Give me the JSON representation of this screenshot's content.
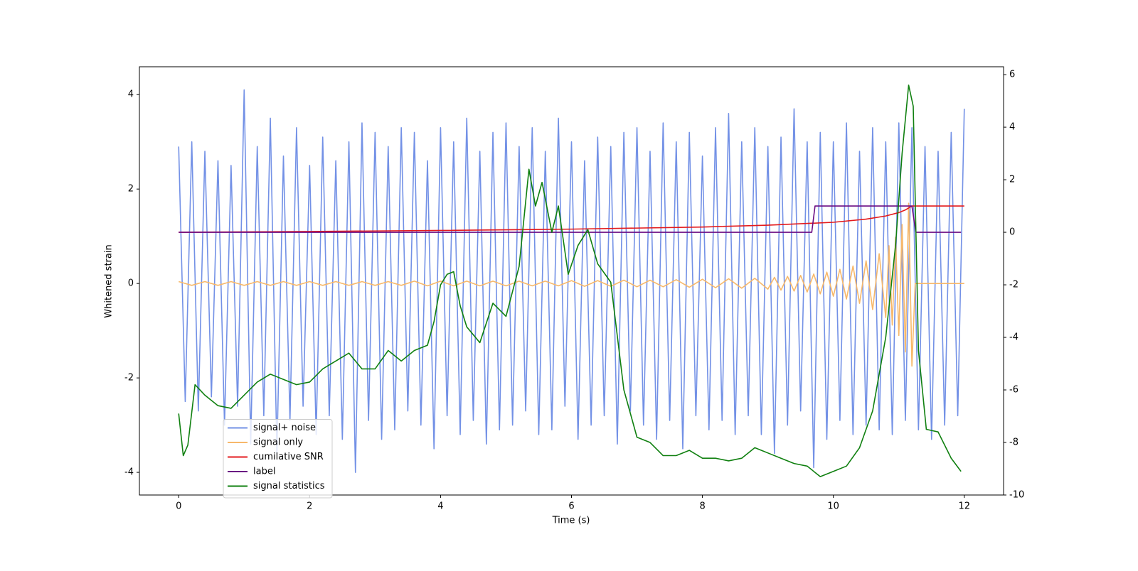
{
  "chart_data": {
    "type": "line",
    "xlabel": "Time (s)",
    "ylabel": "Whitened strain",
    "xlim": [
      -0.6,
      12.6
    ],
    "xticks": [
      0,
      2,
      4,
      6,
      8,
      10,
      12
    ],
    "ylim": [
      -4.48,
      4.59
    ],
    "yticks": [
      -4,
      -2,
      0,
      2,
      4
    ],
    "y2lim": [
      -10.0,
      6.3
    ],
    "y2ticks": [
      -10,
      -8,
      -6,
      -4,
      -2,
      0,
      2,
      4,
      6
    ],
    "legend": "lower left",
    "series": [
      {
        "name": "signal+ noise",
        "color": "#7391e6",
        "axis": "y",
        "x": [
          0,
          0.1,
          0.2,
          0.3,
          0.4,
          0.5,
          0.6,
          0.7,
          0.8,
          0.9,
          1,
          1.1,
          1.2,
          1.3,
          1.4,
          1.5,
          1.6,
          1.7,
          1.8,
          1.9,
          2,
          2.1,
          2.2,
          2.3,
          2.4,
          2.5,
          2.6,
          2.7,
          2.8,
          2.9,
          3,
          3.1,
          3.2,
          3.3,
          3.4,
          3.5,
          3.6,
          3.7,
          3.8,
          3.9,
          4,
          4.1,
          4.2,
          4.3,
          4.4,
          4.5,
          4.6,
          4.7,
          4.8,
          4.9,
          5,
          5.1,
          5.2,
          5.3,
          5.4,
          5.5,
          5.6,
          5.7,
          5.8,
          5.9,
          6,
          6.1,
          6.2,
          6.3,
          6.4,
          6.5,
          6.6,
          6.7,
          6.8,
          6.9,
          7,
          7.1,
          7.2,
          7.3,
          7.4,
          7.5,
          7.6,
          7.7,
          7.8,
          7.9,
          8,
          8.1,
          8.2,
          8.3,
          8.4,
          8.5,
          8.6,
          8.7,
          8.8,
          8.9,
          9,
          9.1,
          9.2,
          9.3,
          9.4,
          9.5,
          9.6,
          9.7,
          9.8,
          9.9,
          10,
          10.1,
          10.2,
          10.3,
          10.4,
          10.5,
          10.6,
          10.7,
          10.8,
          10.9,
          11,
          11.1,
          11.2,
          11.3,
          11.4,
          11.5,
          11.6,
          11.7,
          11.8,
          11.9,
          12
        ],
        "values": [
          2.9,
          -2.5,
          3.0,
          -2.7,
          2.8,
          -2.4,
          2.6,
          -3.0,
          2.5,
          -2.6,
          4.1,
          -3.4,
          2.9,
          -2.8,
          3.5,
          -3.6,
          2.7,
          -2.9,
          3.3,
          -2.6,
          2.5,
          -3.2,
          3.1,
          -2.8,
          2.6,
          -3.3,
          3.0,
          -4.0,
          3.4,
          -2.9,
          3.2,
          -3.3,
          2.9,
          -3.1,
          3.3,
          -2.7,
          3.2,
          -3.0,
          2.6,
          -3.5,
          3.3,
          -2.8,
          3.0,
          -3.2,
          3.5,
          -2.9,
          2.8,
          -3.4,
          3.2,
          -3.1,
          3.4,
          -3.0,
          2.9,
          -2.7,
          3.3,
          -3.2,
          2.8,
          -3.1,
          3.5,
          -2.6,
          3.0,
          -3.3,
          2.6,
          -3.0,
          3.1,
          -2.8,
          2.9,
          -3.4,
          3.2,
          -2.7,
          3.3,
          -3.0,
          2.8,
          -3.3,
          3.4,
          -2.9,
          3.0,
          -3.5,
          3.2,
          -2.8,
          2.7,
          -3.1,
          3.3,
          -2.9,
          3.6,
          -3.2,
          3.0,
          -2.8,
          3.3,
          -3.2,
          2.9,
          -3.6,
          3.1,
          -3.0,
          3.7,
          -2.7,
          3.0,
          -3.9,
          3.2,
          -3.3,
          3.0,
          -2.9,
          3.4,
          -3.2,
          2.8,
          -3.0,
          3.3,
          -3.1,
          3.0,
          -3.2,
          3.4,
          -2.9,
          3.3,
          -3.1,
          2.9,
          -3.3,
          2.8,
          -3.0,
          3.2,
          -2.8,
          3.7
        ]
      },
      {
        "name": "signal only",
        "color": "#f7b86a",
        "axis": "y",
        "x": [
          0,
          0.2,
          0.4,
          0.6,
          0.8,
          1,
          1.2,
          1.4,
          1.6,
          1.8,
          2,
          2.2,
          2.4,
          2.6,
          2.8,
          3,
          3.2,
          3.4,
          3.6,
          3.8,
          4,
          4.2,
          4.4,
          4.6,
          4.8,
          5,
          5.2,
          5.4,
          5.6,
          5.8,
          6,
          6.2,
          6.4,
          6.6,
          6.8,
          7,
          7.2,
          7.4,
          7.6,
          7.8,
          8,
          8.2,
          8.4,
          8.6,
          8.8,
          9,
          9.1,
          9.2,
          9.3,
          9.4,
          9.5,
          9.6,
          9.7,
          9.8,
          9.9,
          10,
          10.1,
          10.2,
          10.3,
          10.4,
          10.5,
          10.6,
          10.7,
          10.8,
          10.85,
          10.9,
          10.95,
          11,
          11.05,
          11.1,
          11.15,
          11.2,
          11.25,
          11.3,
          12
        ],
        "values": [
          0.04,
          -0.04,
          0.04,
          -0.04,
          0.04,
          -0.04,
          0.04,
          -0.04,
          0.04,
          -0.04,
          0.04,
          -0.04,
          0.04,
          -0.04,
          0.04,
          -0.04,
          0.04,
          -0.04,
          0.05,
          -0.05,
          0.05,
          -0.05,
          0.05,
          -0.05,
          0.05,
          -0.05,
          0.05,
          -0.05,
          0.05,
          -0.05,
          0.06,
          -0.06,
          0.06,
          -0.06,
          0.07,
          -0.07,
          0.07,
          -0.07,
          0.08,
          -0.08,
          0.09,
          -0.09,
          0.1,
          -0.1,
          0.11,
          -0.12,
          0.13,
          -0.14,
          0.15,
          -0.16,
          0.17,
          -0.18,
          0.2,
          -0.22,
          0.24,
          -0.27,
          0.3,
          -0.33,
          0.37,
          -0.42,
          0.48,
          -0.55,
          0.63,
          -0.72,
          0.8,
          -0.88,
          0.98,
          -1.1,
          1.25,
          -1.45,
          1.7,
          -1.75,
          0,
          0,
          0
        ]
      },
      {
        "name": "cumilative SNR",
        "color": "#e31a1c",
        "axis": "y2",
        "x": [
          0,
          2,
          4,
          6,
          8,
          9,
          10,
          10.5,
          10.8,
          11,
          11.1,
          11.2,
          11.3,
          12
        ],
        "values": [
          0.0,
          0.03,
          0.07,
          0.12,
          0.2,
          0.27,
          0.38,
          0.5,
          0.62,
          0.75,
          0.85,
          1.0,
          1.0,
          1.0
        ]
      },
      {
        "name": "label",
        "color": "#6a0d83",
        "axis": "y2",
        "x": [
          0,
          9.67,
          9.72,
          11.2,
          11.26,
          11.95
        ],
        "values": [
          0,
          0,
          1,
          1,
          0,
          0
        ]
      },
      {
        "name": "signal statistics",
        "color": "#108010",
        "axis": "y2",
        "x": [
          0,
          0.07,
          0.14,
          0.25,
          0.4,
          0.6,
          0.8,
          1,
          1.2,
          1.4,
          1.6,
          1.8,
          2,
          2.2,
          2.4,
          2.6,
          2.8,
          3,
          3.2,
          3.4,
          3.6,
          3.8,
          3.9,
          4,
          4.1,
          4.2,
          4.3,
          4.4,
          4.6,
          4.8,
          5,
          5.2,
          5.35,
          5.45,
          5.55,
          5.7,
          5.8,
          5.95,
          6.1,
          6.25,
          6.4,
          6.6,
          6.8,
          7,
          7.2,
          7.4,
          7.6,
          7.8,
          8,
          8.2,
          8.4,
          8.6,
          8.8,
          9,
          9.2,
          9.4,
          9.6,
          9.8,
          10,
          10.2,
          10.4,
          10.6,
          10.8,
          10.95,
          11.05,
          11.15,
          11.22,
          11.3,
          11.42,
          11.6,
          11.8,
          11.95
        ],
        "values": [
          -6.9,
          -8.5,
          -8.1,
          -5.8,
          -6.2,
          -6.6,
          -6.7,
          -6.2,
          -5.7,
          -5.4,
          -5.6,
          -5.8,
          -5.7,
          -5.2,
          -4.9,
          -4.6,
          -5.2,
          -5.2,
          -4.5,
          -4.9,
          -4.5,
          -4.3,
          -3.4,
          -2.0,
          -1.6,
          -1.5,
          -2.8,
          -3.6,
          -4.2,
          -2.7,
          -3.2,
          -1.3,
          2.4,
          1.0,
          1.9,
          0.0,
          1.0,
          -1.6,
          -0.5,
          0.1,
          -1.2,
          -1.9,
          -6.0,
          -7.8,
          -8.0,
          -8.5,
          -8.5,
          -8.3,
          -8.6,
          -8.6,
          -8.7,
          -8.6,
          -8.2,
          -8.4,
          -8.6,
          -8.8,
          -8.9,
          -9.3,
          -9.1,
          -8.9,
          -8.2,
          -6.8,
          -4.0,
          -0.5,
          3.0,
          5.6,
          4.8,
          -4.5,
          -7.5,
          -7.6,
          -8.6,
          -9.1
        ]
      }
    ]
  }
}
